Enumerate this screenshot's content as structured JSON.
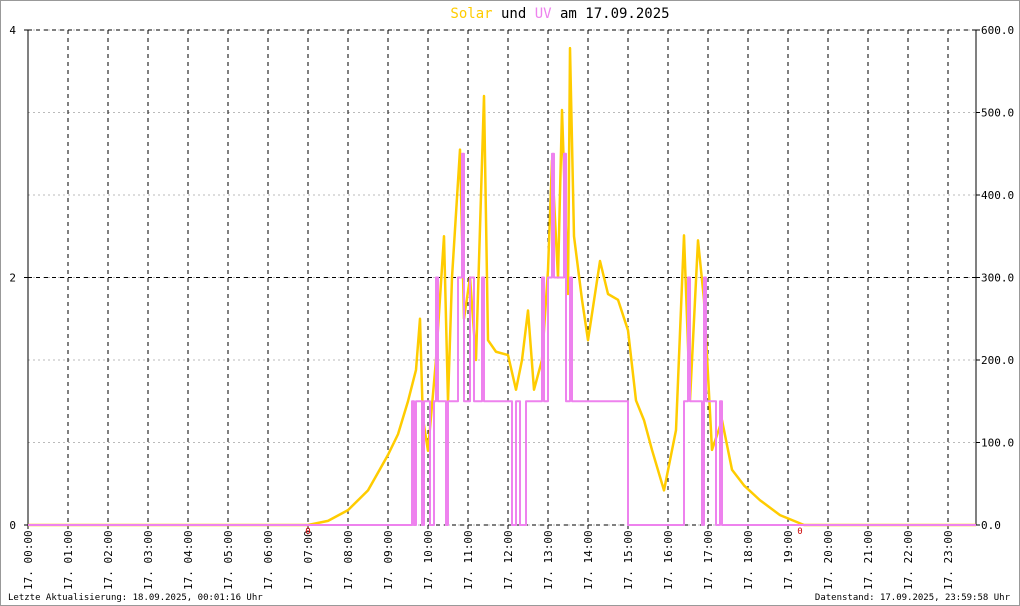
{
  "chart_data": {
    "type": "line",
    "title_connector": "und",
    "title_suffix": "am 17.09.2025",
    "footer_left": "Letzte Aktualisierung: 18.09.2025, 00:01:16 Uhr",
    "footer_right": "Datenstand: 17.09.2025, 23:59:58 Uhr",
    "xlim": [
      0,
      23.7
    ],
    "xticks": [
      {
        "value": 0,
        "label": "17. 00:00"
      },
      {
        "value": 1,
        "label": "17. 01:00"
      },
      {
        "value": 2,
        "label": "17. 02:00"
      },
      {
        "value": 3,
        "label": "17. 03:00"
      },
      {
        "value": 4,
        "label": "17. 04:00"
      },
      {
        "value": 5,
        "label": "17. 05:00"
      },
      {
        "value": 6,
        "label": "17. 06:00"
      },
      {
        "value": 7,
        "label": "17. 07:00"
      },
      {
        "value": 8,
        "label": "17. 08:00"
      },
      {
        "value": 9,
        "label": "17. 09:00"
      },
      {
        "value": 10,
        "label": "17. 10:00"
      },
      {
        "value": 11,
        "label": "17. 11:00"
      },
      {
        "value": 12,
        "label": "17. 12:00"
      },
      {
        "value": 13,
        "label": "17. 13:00"
      },
      {
        "value": 14,
        "label": "17. 14:00"
      },
      {
        "value": 15,
        "label": "17. 15:00"
      },
      {
        "value": 16,
        "label": "17. 16:00"
      },
      {
        "value": 17,
        "label": "17. 17:00"
      },
      {
        "value": 18,
        "label": "17. 18:00"
      },
      {
        "value": 19,
        "label": "17. 19:00"
      },
      {
        "value": 20,
        "label": "17. 20:00"
      },
      {
        "value": 21,
        "label": "17. 21:00"
      },
      {
        "value": 22,
        "label": "17. 22:00"
      },
      {
        "value": 23,
        "label": "17. 23:00"
      }
    ],
    "ylim": [
      0,
      4
    ],
    "yticks": [
      0,
      2,
      4
    ],
    "y2lim": [
      0,
      600
    ],
    "y2ticks": [
      {
        "value": 0,
        "label": "0.0"
      },
      {
        "value": 100,
        "label": "100.0"
      },
      {
        "value": 200,
        "label": "200.0"
      },
      {
        "value": 300,
        "label": "300.0"
      },
      {
        "value": 400,
        "label": "400.0"
      },
      {
        "value": 500,
        "label": "500.0"
      },
      {
        "value": 600,
        "label": "600.0"
      }
    ],
    "grid": true,
    "annotations": [
      {
        "x": 7.0,
        "label": "0"
      },
      {
        "x": 19.3,
        "label": "0"
      }
    ],
    "series": [
      {
        "name": "Solar",
        "color": "#ffcc00",
        "axis": "y2",
        "step": false,
        "x": [
          0,
          7.0,
          7.5,
          8.0,
          8.5,
          9.0,
          9.25,
          9.5,
          9.7,
          9.8,
          9.87,
          10.0,
          10.2,
          10.4,
          10.5,
          10.6,
          10.8,
          10.9,
          11.05,
          11.2,
          11.4,
          11.5,
          11.7,
          12.0,
          12.2,
          12.35,
          12.5,
          12.65,
          12.85,
          13.0,
          13.1,
          13.25,
          13.35,
          13.5,
          13.55,
          13.65,
          13.85,
          14.0,
          14.3,
          14.5,
          14.75,
          15.0,
          15.2,
          15.4,
          15.6,
          15.9,
          16.2,
          16.4,
          16.55,
          16.75,
          16.9,
          17.1,
          17.35,
          17.6,
          17.9,
          18.3,
          18.8,
          19.4,
          23.7
        ],
        "values": [
          0,
          0,
          5,
          18,
          42,
          85,
          110,
          150,
          188,
          250,
          130,
          90,
          200,
          350,
          150,
          300,
          455,
          250,
          300,
          200,
          520,
          224,
          210,
          206,
          164,
          200,
          260,
          164,
          200,
          309,
          442,
          300,
          503,
          280,
          578,
          350,
          273,
          224,
          320,
          280,
          273,
          236,
          151,
          127,
          91,
          42,
          115,
          351,
          151,
          345,
          273,
          91,
          127,
          67,
          48,
          30,
          12,
          0,
          0
        ]
      },
      {
        "name": "UV",
        "color": "#ee82ee",
        "axis": "y",
        "step": true,
        "x": [
          0,
          9.6,
          9.65,
          9.7,
          9.85,
          9.9,
          10.05,
          10.15,
          10.2,
          10.25,
          10.45,
          10.5,
          10.75,
          10.85,
          10.9,
          11.05,
          11.15,
          11.35,
          11.4,
          12.1,
          12.2,
          12.3,
          12.45,
          12.85,
          12.9,
          13.0,
          13.1,
          13.15,
          13.4,
          13.45,
          13.55,
          13.6,
          15.0,
          16.4,
          16.5,
          16.55,
          16.85,
          16.9,
          16.95,
          17.2,
          17.3,
          17.35,
          23.7
        ],
        "values": [
          0,
          1,
          0,
          1,
          0,
          1,
          0,
          1,
          2,
          1,
          0,
          1,
          2,
          3,
          1,
          2,
          1,
          2,
          1,
          0,
          1,
          0,
          1,
          2,
          1,
          2,
          3,
          2,
          3,
          1,
          2,
          1,
          0,
          1,
          2,
          1,
          0,
          2,
          1,
          0,
          1,
          0,
          0
        ]
      }
    ]
  }
}
